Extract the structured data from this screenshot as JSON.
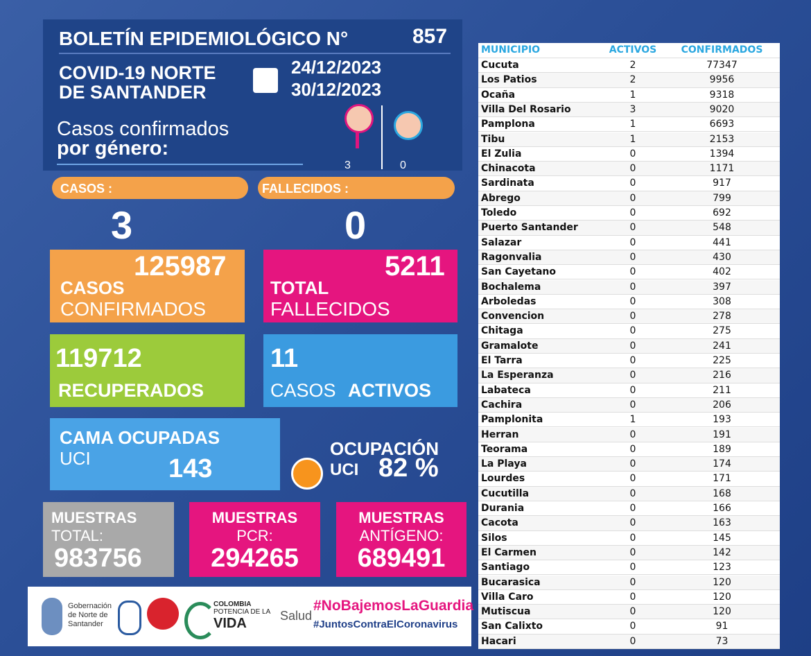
{
  "header": {
    "title": "BOLETÍN EPIDEMIOLÓGICO N°",
    "number": "857",
    "subtitle_1": "COVID-19 NORTE",
    "subtitle_2": "DE SANTANDER",
    "date_start": "24/12/2023",
    "date_end": "30/12/2023",
    "gender_label_1": "Casos confirmados",
    "gender_label_2": "por género:",
    "female": "3",
    "male": "0"
  },
  "summary": {
    "cases_label": "CASOS :",
    "cases": "3",
    "deaths_label": "FALLECIDOS :",
    "deaths": "0"
  },
  "cards": {
    "confirmed": {
      "value": "125987",
      "label_1": "CASOS",
      "label_2": "CONFIRMADOS"
    },
    "deaths": {
      "value": "5211",
      "label_1": "TOTAL",
      "label_2": "FALLECIDOS"
    },
    "recovered": {
      "value": "119712",
      "label": "RECUPERADOS"
    },
    "active": {
      "value": "11",
      "label_1": "CASOS",
      "label_2": "ACTIVOS"
    },
    "icu_beds": {
      "label_1": "CAMA OCUPADAS",
      "label_2": "UCI",
      "value": "143"
    },
    "icu_occupancy": {
      "label_1": "OCUPACIÓN",
      "label_2": "UCI",
      "value": "82 %"
    },
    "samples_total": {
      "label_1": "MUESTRAS",
      "label_2": "TOTAL:",
      "value": "983756"
    },
    "samples_pcr": {
      "label_1": "MUESTRAS",
      "label_2": "PCR:",
      "value": "294265"
    },
    "samples_antigen": {
      "label_1": "MUESTRAS",
      "label_2": "ANTÍGENO:",
      "value": "689491"
    }
  },
  "footer": {
    "gov_1": "Gobernación",
    "gov_2": "de Norte de",
    "gov_3": "Santander",
    "colombia_1": "COLOMBIA",
    "colombia_2": "POTENCIA DE LA",
    "colombia_3": "VIDA",
    "salud": "Salud",
    "hashtag_1": "#NoBajemosLaGuardia",
    "hashtag_2": "#JuntosContraElCoronavirus"
  },
  "table": {
    "columns": [
      "MUNICIPIO",
      "ACTIVOS",
      "CONFIRMADOS"
    ],
    "rows": [
      [
        "Cucuta",
        2,
        77347
      ],
      [
        "Los Patios",
        2,
        9956
      ],
      [
        "Ocaña",
        1,
        9318
      ],
      [
        "Villa Del Rosario",
        3,
        9020
      ],
      [
        "Pamplona",
        1,
        6693
      ],
      [
        "Tibu",
        1,
        2153
      ],
      [
        "El Zulia",
        0,
        1394
      ],
      [
        "Chinacota",
        0,
        1171
      ],
      [
        "Sardinata",
        0,
        917
      ],
      [
        "Abrego",
        0,
        799
      ],
      [
        "Toledo",
        0,
        692
      ],
      [
        "Puerto Santander",
        0,
        548
      ],
      [
        "Salazar",
        0,
        441
      ],
      [
        "Ragonvalia",
        0,
        430
      ],
      [
        "San Cayetano",
        0,
        402
      ],
      [
        "Bochalema",
        0,
        397
      ],
      [
        "Arboledas",
        0,
        308
      ],
      [
        "Convencion",
        0,
        278
      ],
      [
        "Chitaga",
        0,
        275
      ],
      [
        "Gramalote",
        0,
        241
      ],
      [
        "El Tarra",
        0,
        225
      ],
      [
        "La Esperanza",
        0,
        216
      ],
      [
        "Labateca",
        0,
        211
      ],
      [
        "Cachira",
        0,
        206
      ],
      [
        "Pamplonita",
        1,
        193
      ],
      [
        "Herran",
        0,
        191
      ],
      [
        "Teorama",
        0,
        189
      ],
      [
        "La Playa",
        0,
        174
      ],
      [
        "Lourdes",
        0,
        171
      ],
      [
        "Cucutilla",
        0,
        168
      ],
      [
        "Durania",
        0,
        166
      ],
      [
        "Cacota",
        0,
        163
      ],
      [
        "Silos",
        0,
        145
      ],
      [
        "El Carmen",
        0,
        142
      ],
      [
        "Santiago",
        0,
        123
      ],
      [
        "Bucarasica",
        0,
        120
      ],
      [
        "Villa Caro",
        0,
        120
      ],
      [
        "Mutiscua",
        0,
        120
      ],
      [
        "San Calixto",
        0,
        91
      ],
      [
        "Hacari",
        0,
        73
      ]
    ]
  }
}
